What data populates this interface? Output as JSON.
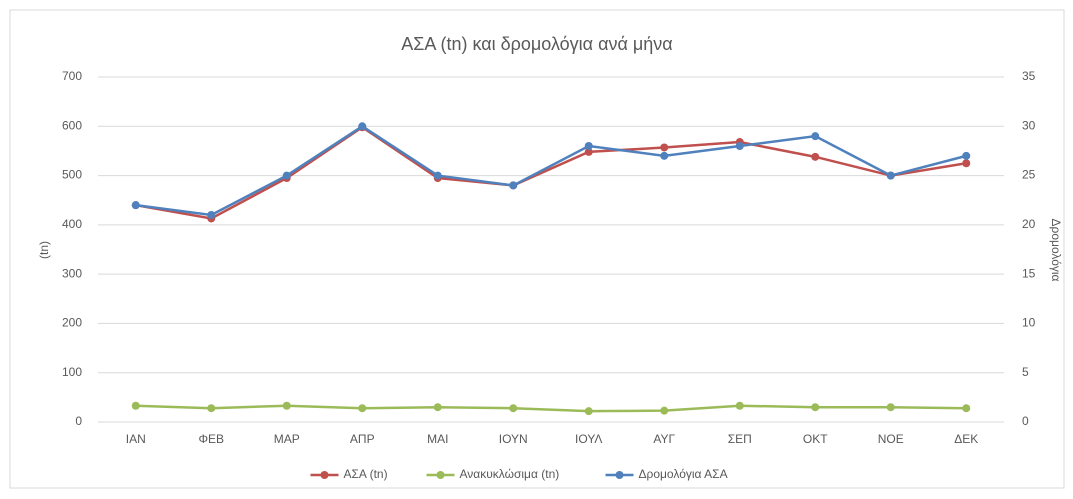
{
  "chart_data": {
    "type": "line",
    "title": "ΑΣΑ (tn) και δρομολόγια ανά μήνα",
    "ylabel": "(tn)",
    "y2label": "Δρομολόγια",
    "categories": [
      "ΙΑΝ",
      "ΦΕΒ",
      "ΜΑΡ",
      "ΑΠΡ",
      "ΜΑΙ",
      "ΙΟΥΝ",
      "ΙΟΥΛ",
      "ΑΥΓ",
      "ΣΕΠ",
      "ΟΚΤ",
      "ΝΟΕ",
      "ΔΕΚ"
    ],
    "series": [
      {
        "name": "ΑΣΑ (tn)",
        "color": "#c0504d",
        "values": [
          440,
          413,
          495,
          598,
          495,
          480,
          548,
          557,
          568,
          538,
          500,
          525
        ]
      },
      {
        "name": "Ανακυκλώσιμα (tn)",
        "color": "#9bbb59",
        "values": [
          33,
          28,
          33,
          28,
          30,
          28,
          22,
          23,
          33,
          30,
          30,
          28
        ]
      },
      {
        "name": "Δρομολόγια ΑΣΑ",
        "color": "#4f81bd",
        "axis": "y2",
        "values": [
          22,
          21,
          25,
          30,
          25,
          24,
          28,
          27,
          28,
          29,
          25,
          27
        ]
      }
    ],
    "ylim": [
      0,
      700
    ],
    "yticks": [
      0,
      100,
      200,
      300,
      400,
      500,
      600,
      700
    ],
    "y2lim": [
      0,
      35
    ],
    "y2ticks": [
      0,
      5,
      10,
      15,
      20,
      25,
      30,
      35
    ],
    "grid": true,
    "legend": "bottom"
  }
}
